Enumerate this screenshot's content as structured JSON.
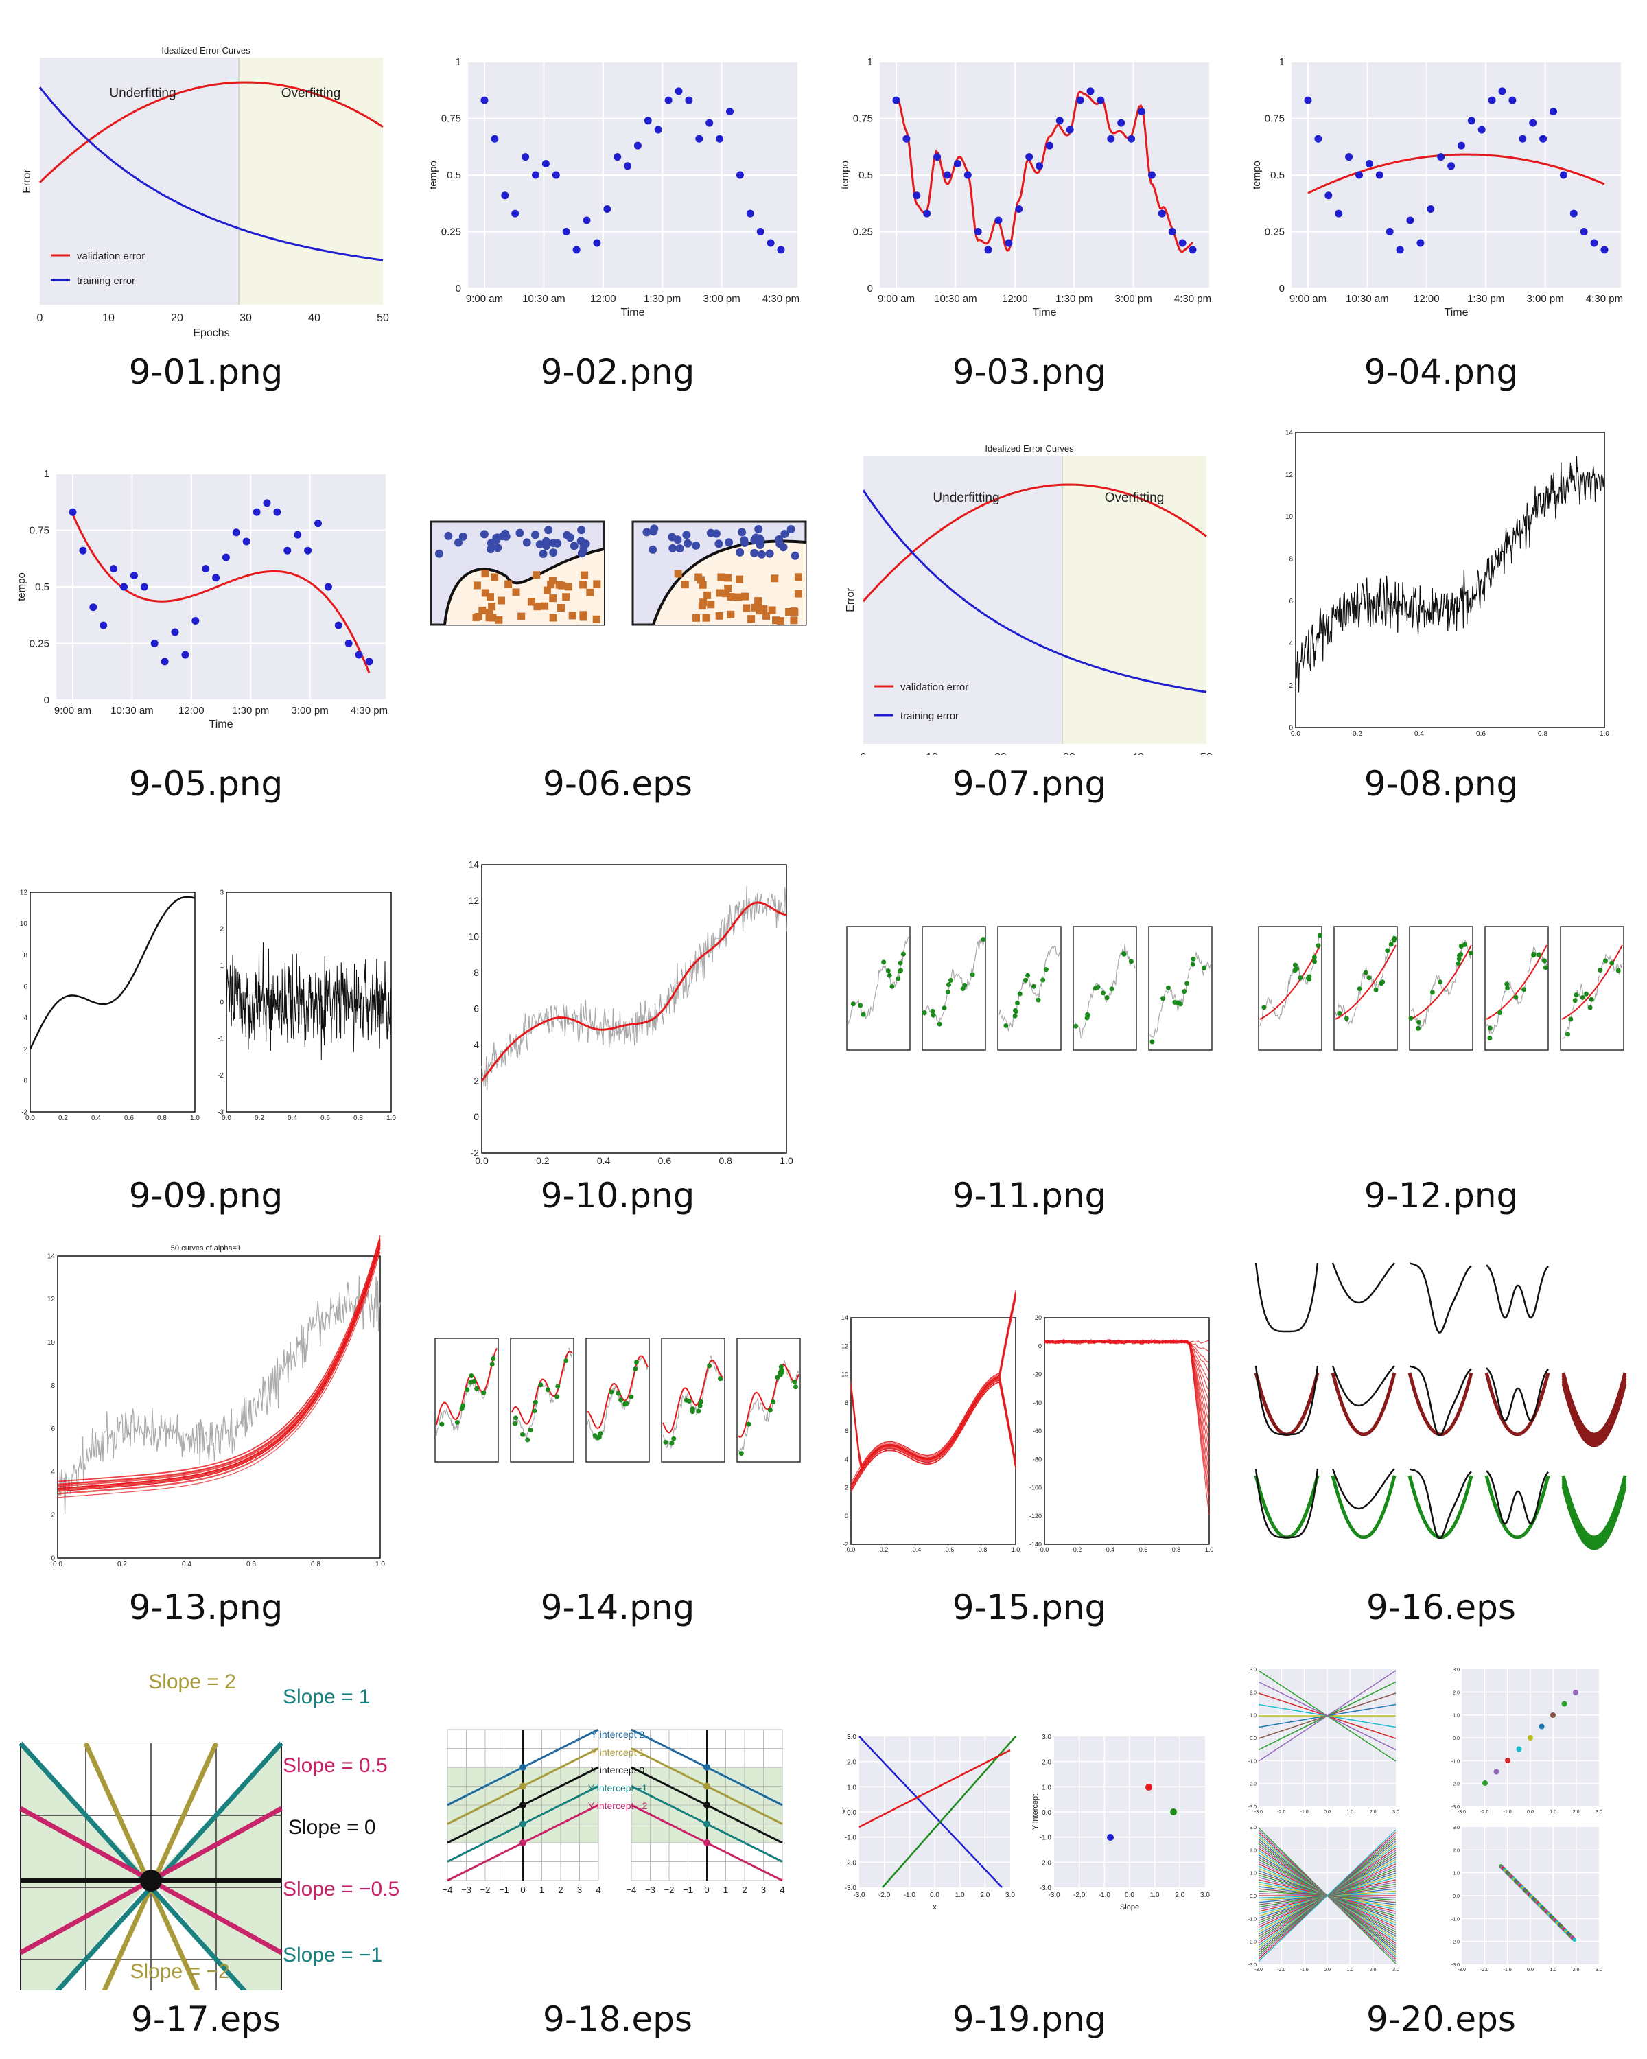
{
  "files": [
    {
      "name": "9-01.png"
    },
    {
      "name": "9-02.png"
    },
    {
      "name": "9-03.png"
    },
    {
      "name": "9-04.png"
    },
    {
      "name": "9-05.png"
    },
    {
      "name": "9-06.eps"
    },
    {
      "name": "9-07.png"
    },
    {
      "name": "9-08.png"
    },
    {
      "name": "9-09.png"
    },
    {
      "name": "9-10.png"
    },
    {
      "name": "9-11.png"
    },
    {
      "name": "9-12.png"
    },
    {
      "name": "9-13.png"
    },
    {
      "name": "9-14.png"
    },
    {
      "name": "9-15.png"
    },
    {
      "name": "9-16.eps"
    },
    {
      "name": "9-17.eps"
    },
    {
      "name": "9-18.eps"
    },
    {
      "name": "9-19.png"
    },
    {
      "name": "9-20.eps"
    }
  ],
  "labels": {
    "error_title": "Idealized Error Curves",
    "underfitting": "Underfitting",
    "overfitting": "Overfitting",
    "error_ylabel": "Error",
    "epochs": "Epochs",
    "validation": "validation error",
    "training": "training error",
    "tempo": "tempo",
    "time": "Time",
    "time_ticks": [
      "9:00 am",
      "10:30 am",
      "12:00",
      "1:30 pm",
      "3:00 pm",
      "4:30 pm"
    ],
    "tempo_ticks": [
      "0",
      "0.25",
      "0.5",
      "0.75",
      "1"
    ],
    "epoch_ticks": [
      "0",
      "10",
      "20",
      "30",
      "40",
      "50"
    ],
    "alpha_title": "50 curves of alpha=1",
    "slopes": [
      "Slope = 2",
      "Slope = 1",
      "Slope = 0.5",
      "Slope = 0",
      "Slope = −0.5",
      "Slope = −1",
      "Slope = −2"
    ],
    "intercepts": [
      "Y intercept 2",
      "Y intercept 1",
      "Y intercept 0",
      "Y intercept −1",
      "Y intercept −2"
    ],
    "x": "x",
    "y": "y",
    "slope": "Slope",
    "yintercept": "Y intercept"
  },
  "colors": {
    "red": "#e41a1c",
    "blue": "#1f1fd0",
    "grid_bg": "#eaeaf2",
    "over_bg": "#f5f5e6",
    "green": "#1a8a1a",
    "teal": "#1a8080",
    "olive": "#a89a3a",
    "magenta": "#c8246a",
    "dark_red": "#8b1a1a"
  }
}
